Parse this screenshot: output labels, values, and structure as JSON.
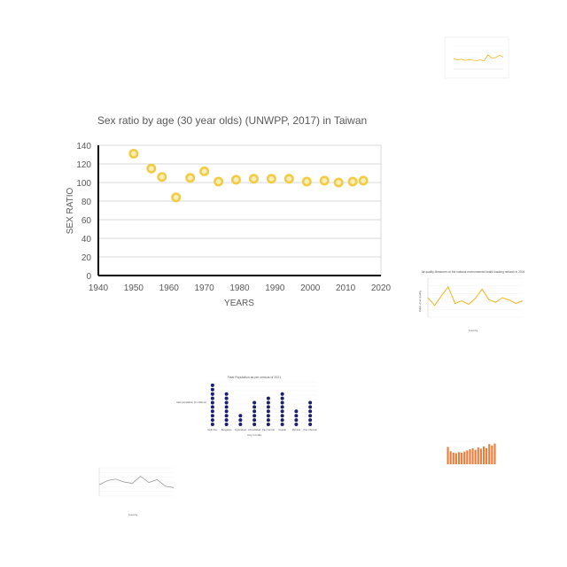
{
  "colors": {
    "scatter_fill": "#f7dc6f",
    "scatter_stroke": "#f2cc45",
    "scatter_inner": "#fbeeb5",
    "gold_line": "#f2b51c",
    "navy_dots": "#1a1f6e",
    "orange_bars": "#ee7c3b",
    "gray_line": "#8c8c8c",
    "axis": "#000000",
    "grid": "#d9d9d9",
    "text": "#595959"
  },
  "chart_data": [
    {
      "type": "scatter",
      "title": "Sex ratio by age (30 year olds) (UNWPP, 2017) in Taiwan",
      "xlabel": "YEARS",
      "ylabel": "SEX RATIO",
      "xlim": [
        1940,
        2020
      ],
      "ylim": [
        0,
        140
      ],
      "xticks": [
        1940,
        1950,
        1960,
        1970,
        1980,
        1990,
        2000,
        2010,
        2020
      ],
      "yticks": [
        0,
        20,
        40,
        60,
        80,
        100,
        120,
        140
      ],
      "grid": true,
      "points": [
        {
          "x": 1950,
          "y": 131
        },
        {
          "x": 1955,
          "y": 115
        },
        {
          "x": 1958,
          "y": 106
        },
        {
          "x": 1962,
          "y": 84
        },
        {
          "x": 1966,
          "y": 105
        },
        {
          "x": 1970,
          "y": 112
        },
        {
          "x": 1974,
          "y": 101
        },
        {
          "x": 1979,
          "y": 103
        },
        {
          "x": 1984,
          "y": 104
        },
        {
          "x": 1989,
          "y": 104
        },
        {
          "x": 1994,
          "y": 104
        },
        {
          "x": 1999,
          "y": 101
        },
        {
          "x": 2004,
          "y": 102
        },
        {
          "x": 2008,
          "y": 100
        },
        {
          "x": 2012,
          "y": 101
        },
        {
          "x": 2015,
          "y": 102
        }
      ]
    },
    {
      "type": "line",
      "title": "",
      "values": [
        0.45,
        0.4,
        0.43,
        0.38,
        0.41,
        0.39,
        0.37,
        0.4,
        0.36,
        0.62,
        0.48,
        0.5,
        0.6,
        0.52
      ]
    },
    {
      "type": "line",
      "title": "Air quality Measures on the national environmental health tracking network in 2004",
      "xlabel": "Country",
      "ylabel": "Index of air quality",
      "values": [
        0.5,
        0.3,
        0.55,
        0.78,
        0.35,
        0.42,
        0.33,
        0.48,
        0.72,
        0.45,
        0.38,
        0.5,
        0.44,
        0.35,
        0.42
      ]
    },
    {
      "type": "scatter",
      "title": "Total Population as per census of 2021",
      "xlabel": "City in India",
      "ylabel": "total population (in millions)",
      "categories": [
        "Delhi Ncr",
        "Bangalore",
        "Hyderabad",
        "Ahmedabad",
        "Pan Central",
        "Gujarat",
        "Mumbai",
        "Pan Chennai"
      ],
      "values": [
        10,
        8,
        3,
        6,
        7,
        8,
        4,
        6
      ]
    },
    {
      "type": "bar",
      "title": "",
      "values": [
        60,
        45,
        40,
        38,
        42,
        40,
        44,
        48,
        52,
        55,
        50,
        58,
        54,
        62,
        56,
        70,
        65,
        72
      ]
    },
    {
      "type": "line",
      "title": "",
      "xlabel": "Country",
      "values": [
        0.4,
        0.55,
        0.6,
        0.5,
        0.45,
        0.7,
        0.48,
        0.58,
        0.35,
        0.3
      ]
    }
  ]
}
